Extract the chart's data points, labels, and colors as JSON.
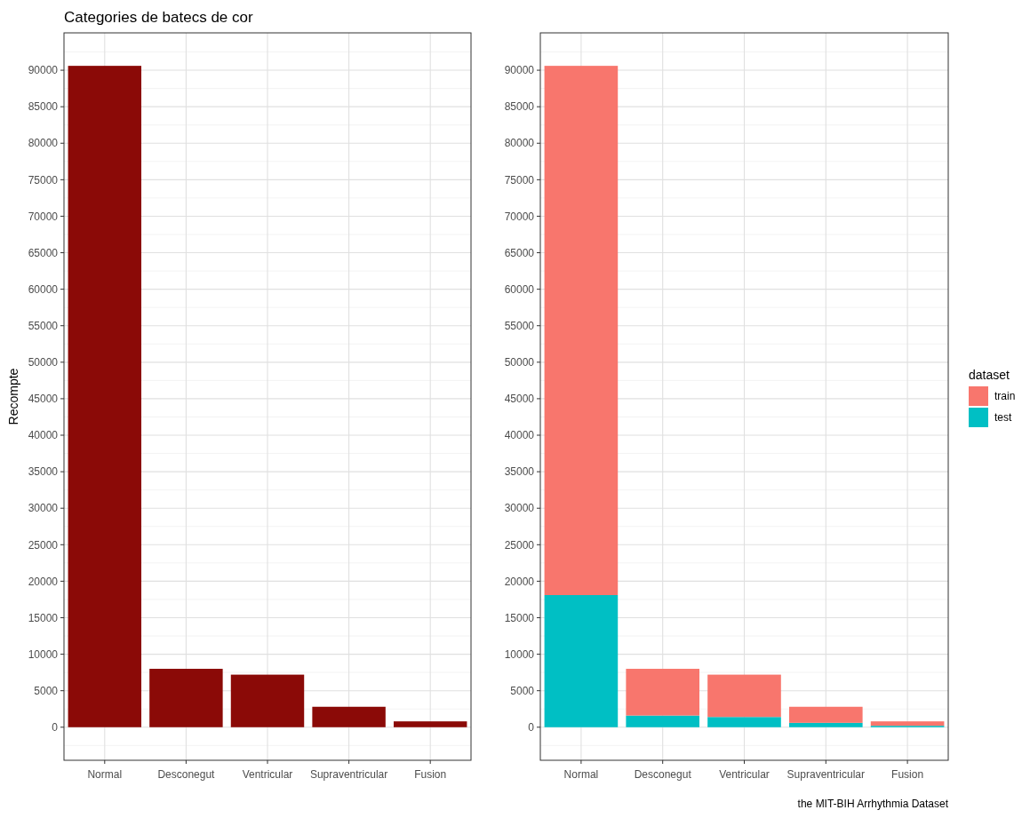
{
  "chart_data": [
    {
      "type": "bar",
      "title": "Categories de batecs de cor",
      "ylabel": "Recompte",
      "categories": [
        "Normal",
        "Desconegut",
        "Ventricular",
        "Supraventricular",
        "Fusion"
      ],
      "values": [
        90600,
        8000,
        7200,
        2800,
        800
      ],
      "color": "#8b0a07",
      "ylim": [
        -4529,
        95118
      ],
      "yticks": [
        0,
        5000,
        10000,
        15000,
        20000,
        25000,
        30000,
        35000,
        40000,
        45000,
        50000,
        55000,
        60000,
        65000,
        70000,
        75000,
        80000,
        85000,
        90000
      ],
      "grid": true,
      "legend": false
    },
    {
      "type": "bar",
      "stacked": true,
      "legend_title": "dataset",
      "categories": [
        "Normal",
        "Desconegut",
        "Ventricular",
        "Supraventricular",
        "Fusion"
      ],
      "series": [
        {
          "name": "test",
          "color": "#00bfc4",
          "values": [
            18100,
            1600,
            1400,
            600,
            200
          ]
        },
        {
          "name": "train",
          "color": "#f8766d",
          "values": [
            72500,
            6400,
            5800,
            2200,
            600
          ]
        }
      ],
      "ylim": [
        -4529,
        95118
      ],
      "yticks": [
        0,
        5000,
        10000,
        15000,
        20000,
        25000,
        30000,
        35000,
        40000,
        45000,
        50000,
        55000,
        60000,
        65000,
        70000,
        75000,
        80000,
        85000,
        90000
      ],
      "grid": true,
      "legend": "right",
      "annotations": [
        "the MIT-BIH Arrhythmia Dataset"
      ]
    }
  ]
}
